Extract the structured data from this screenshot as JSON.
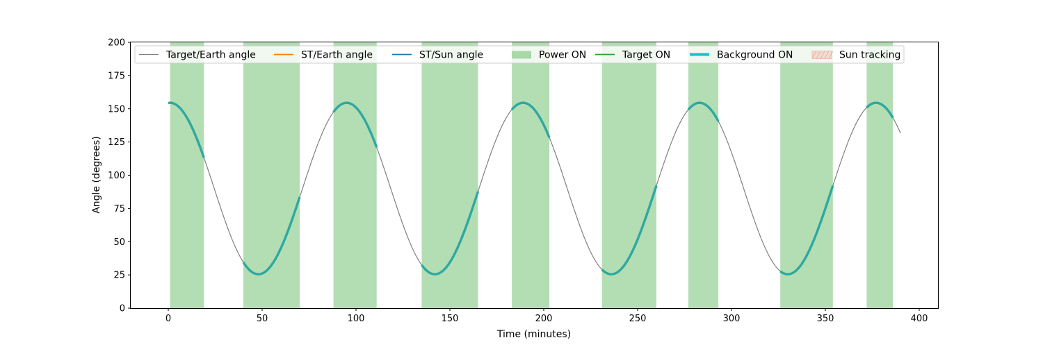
{
  "chart_data": {
    "type": "line",
    "title": "",
    "xlabel": "Time (minutes)",
    "ylabel": "Angle (degrees)",
    "xlim": [
      -20,
      410
    ],
    "ylim": [
      0,
      200
    ],
    "xticks": [
      0,
      50,
      100,
      150,
      200,
      250,
      300,
      350,
      400
    ],
    "yticks": [
      0,
      25,
      50,
      75,
      100,
      125,
      150,
      175,
      200
    ],
    "grid": false,
    "legend_position": "top",
    "curve": {
      "description_free": true,
      "x_start": 0,
      "x_end": 390,
      "period_minutes": 94,
      "mean_deg": 90,
      "amplitude_deg": 64.5,
      "peak_x": 1
    },
    "series": [
      {
        "name": "Target/Earth angle",
        "color": "#808080",
        "style": "thin-line"
      },
      {
        "name": "ST/Earth angle",
        "color": "#ff7f0e",
        "style": "line"
      },
      {
        "name": "ST/Sun angle",
        "color": "#1f77b4",
        "style": "line"
      },
      {
        "name": "Power ON",
        "color": "#2ca02c",
        "style": "band"
      },
      {
        "name": "Target ON",
        "color": "#2ca02c",
        "style": "line"
      },
      {
        "name": "Background ON",
        "color": "#17becf",
        "style": "thick-line"
      },
      {
        "name": "Sun tracking",
        "color": "#f4b8a8",
        "style": "hatched-band"
      }
    ],
    "power_on_intervals": [
      [
        1,
        19
      ],
      [
        40,
        70
      ],
      [
        88,
        111
      ],
      [
        135,
        165
      ],
      [
        183,
        203
      ],
      [
        231,
        260
      ],
      [
        277,
        293
      ],
      [
        326,
        354
      ],
      [
        372,
        386
      ]
    ],
    "background_on_intervals": [
      [
        0,
        19
      ],
      [
        40,
        70
      ],
      [
        88,
        111
      ],
      [
        135,
        165
      ],
      [
        183,
        203
      ],
      [
        231,
        260
      ],
      [
        277,
        293
      ],
      [
        326,
        354
      ],
      [
        372,
        386
      ]
    ]
  }
}
